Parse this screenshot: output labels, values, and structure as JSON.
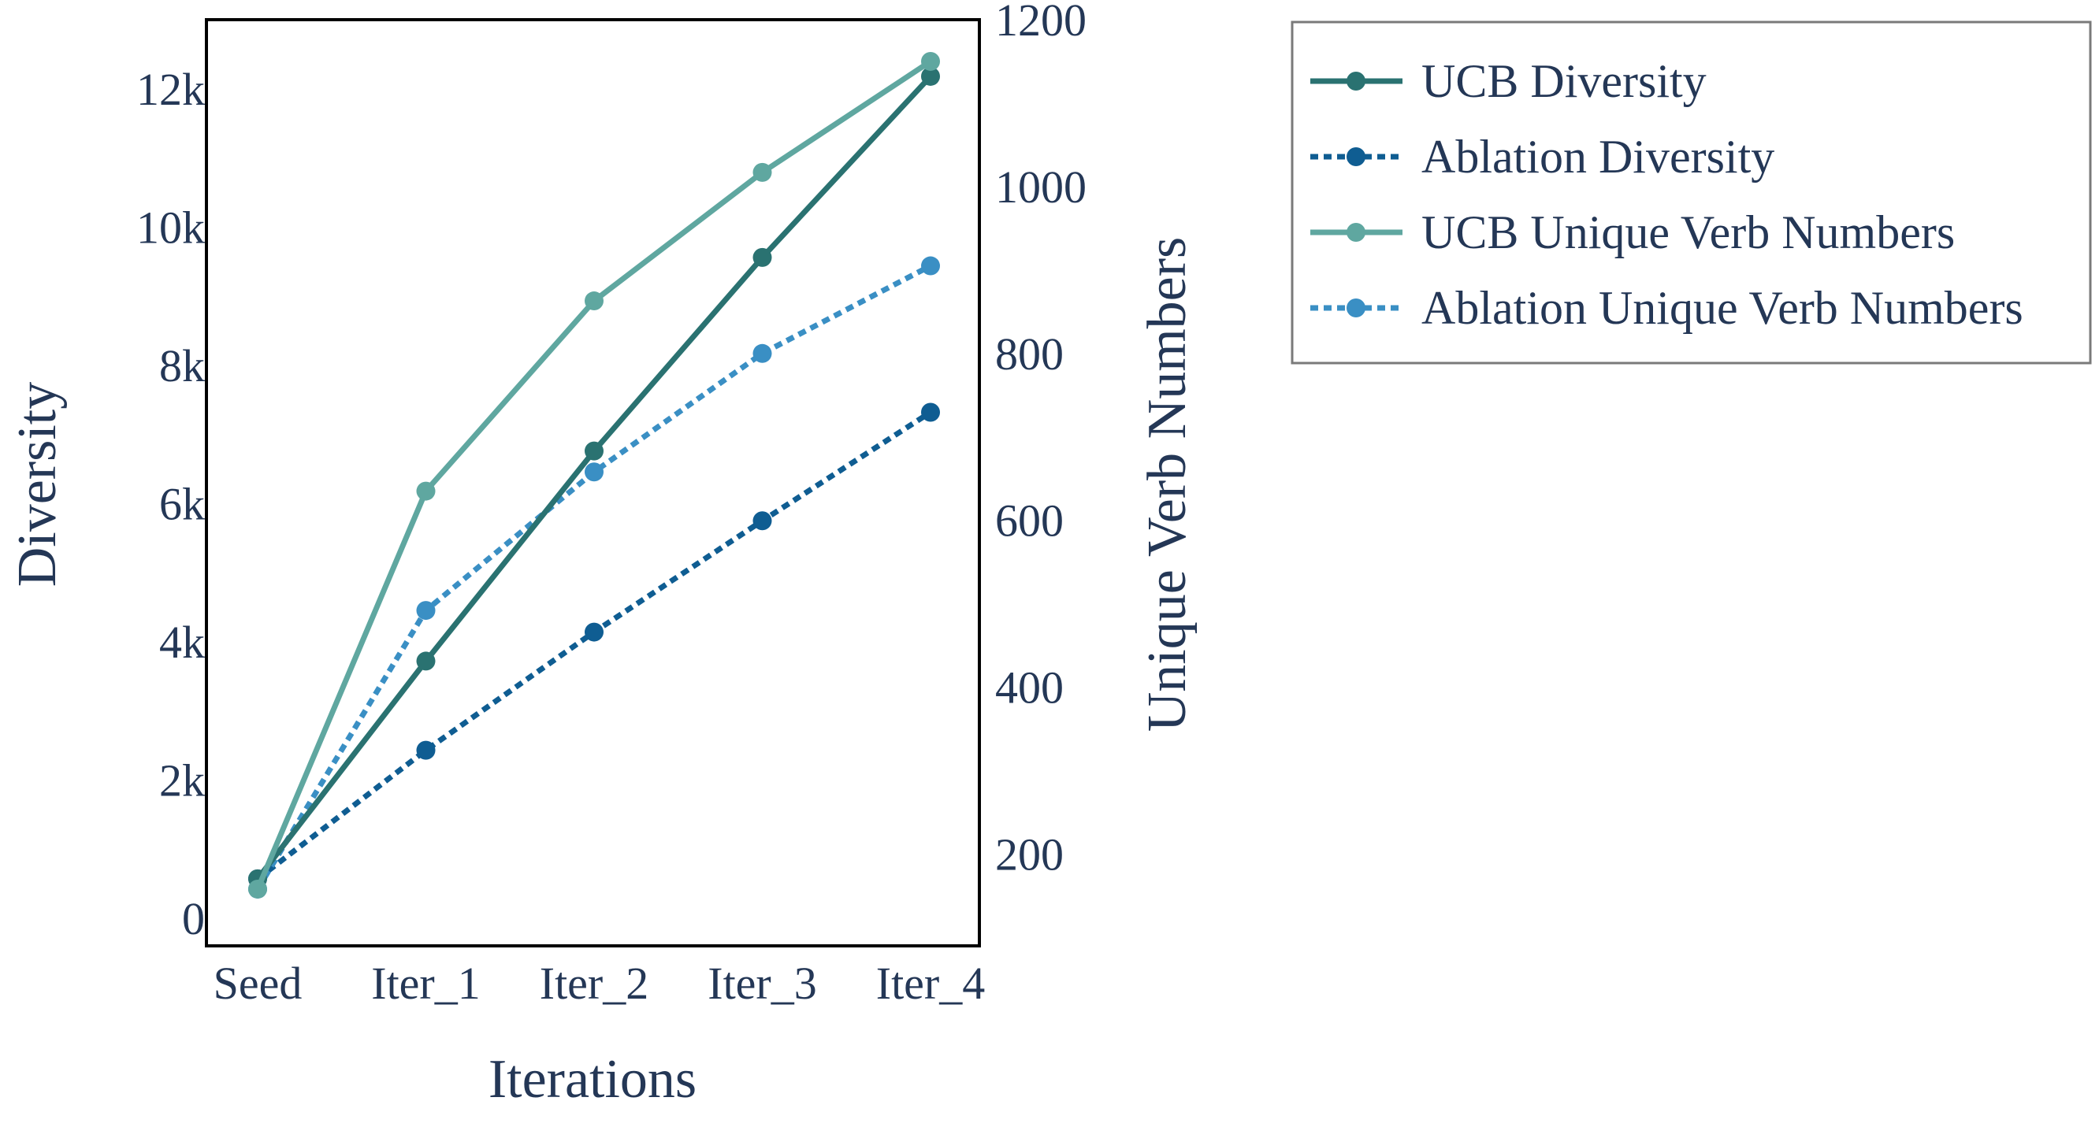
{
  "chart_data": {
    "type": "line",
    "title": "",
    "xlabel": "Iterations",
    "ylabel": "Diversity",
    "y2label": "Unique Verb Numbers",
    "categories": [
      "Seed",
      "Iter_1",
      "Iter_2",
      "Iter_3",
      "Iter_4"
    ],
    "ylim": [
      -400,
      13000
    ],
    "yticks": [
      0,
      2000,
      4000,
      6000,
      8000,
      10000,
      12000
    ],
    "ytick_labels": [
      "0",
      "2k",
      "4k",
      "6k",
      "8k",
      "10k",
      "12k"
    ],
    "y2lim": [
      90,
      1200
    ],
    "y2ticks": [
      200,
      400,
      600,
      800,
      1000,
      1200
    ],
    "y2tick_labels": [
      "200",
      "400",
      "600",
      "800",
      "1000",
      "1200"
    ],
    "grid": false,
    "legend_position": "outside-right-top",
    "series": [
      {
        "name": "UCB Diversity",
        "axis": "left",
        "values": [
          570,
          3720,
          6760,
          9560,
          12180
        ],
        "color": "#2a7271",
        "dash": "solid"
      },
      {
        "name": "Ablation Diversity",
        "axis": "left",
        "values": [
          570,
          2430,
          4140,
          5750,
          7320
        ],
        "color": "#0f5d92",
        "dash": "dotted"
      },
      {
        "name": "UCB Unique Verb Numbers",
        "axis": "right",
        "values": [
          158,
          635,
          863,
          1017,
          1150
        ],
        "color": "#5fa7a0",
        "dash": "solid"
      },
      {
        "name": "Ablation Unique Verb Numbers",
        "axis": "right",
        "values": [
          158,
          492,
          658,
          800,
          905
        ],
        "color": "#3a8fc4",
        "dash": "dotted"
      }
    ],
    "colors": {
      "text": "#243756",
      "axis": "#000000",
      "legend_border": "#7a7a7a"
    }
  }
}
